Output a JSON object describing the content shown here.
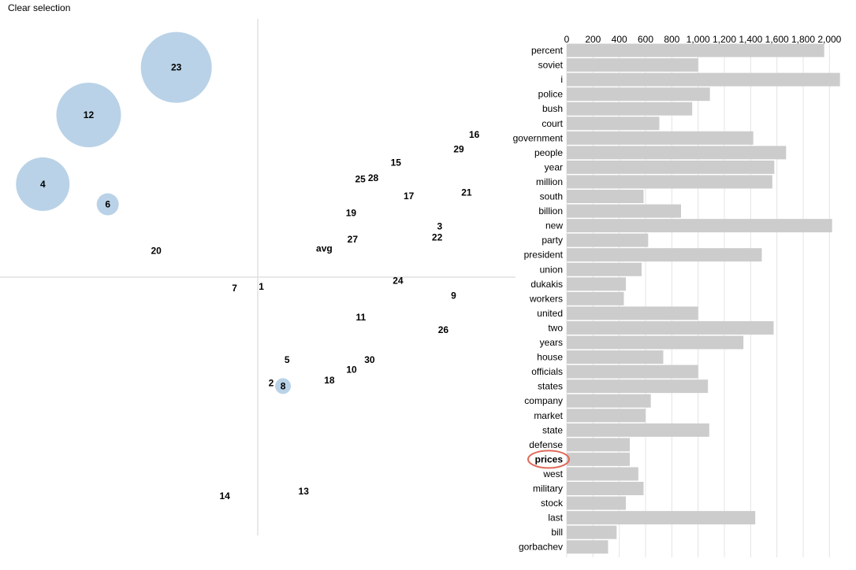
{
  "toolbar": {
    "clear_label": "Clear selection"
  },
  "colors": {
    "topic_circle": "#b5d0e6",
    "bar": "#cccccc",
    "highlight": "#e06a5a"
  },
  "chart_data": [
    {
      "type": "scatter",
      "x": [
        0,
        1
      ],
      "y": [
        0,
        1
      ],
      "points": [
        {
          "label": "23",
          "x": 0.342,
          "y": 0.906,
          "r": 45
        },
        {
          "label": "12",
          "x": 0.172,
          "y": 0.814,
          "r": 41
        },
        {
          "label": "4",
          "x": 0.083,
          "y": 0.68,
          "r": 34
        },
        {
          "label": "6",
          "x": 0.209,
          "y": 0.641,
          "r": 14
        },
        {
          "label": "8",
          "x": 0.549,
          "y": 0.289,
          "r": 10
        },
        {
          "label": "16",
          "x": 0.92,
          "y": 0.776,
          "r": 0
        },
        {
          "label": "29",
          "x": 0.89,
          "y": 0.748,
          "r": 0
        },
        {
          "label": "15",
          "x": 0.768,
          "y": 0.722,
          "r": 0
        },
        {
          "label": "25",
          "x": 0.699,
          "y": 0.69,
          "r": 0
        },
        {
          "label": "28",
          "x": 0.724,
          "y": 0.692,
          "r": 0
        },
        {
          "label": "17",
          "x": 0.793,
          "y": 0.657,
          "r": 0
        },
        {
          "label": "21",
          "x": 0.905,
          "y": 0.664,
          "r": 0
        },
        {
          "label": "19",
          "x": 0.681,
          "y": 0.624,
          "r": 0
        },
        {
          "label": "3",
          "x": 0.853,
          "y": 0.598,
          "r": 0
        },
        {
          "label": "22",
          "x": 0.848,
          "y": 0.577,
          "r": 0
        },
        {
          "label": "27",
          "x": 0.684,
          "y": 0.573,
          "r": 0
        },
        {
          "label": "avg",
          "x": 0.629,
          "y": 0.556,
          "r": 0
        },
        {
          "label": "20",
          "x": 0.303,
          "y": 0.551,
          "r": 0
        },
        {
          "label": "24",
          "x": 0.772,
          "y": 0.493,
          "r": 0
        },
        {
          "label": "1",
          "x": 0.507,
          "y": 0.482,
          "r": 0
        },
        {
          "label": "7",
          "x": 0.455,
          "y": 0.479,
          "r": 0
        },
        {
          "label": "9",
          "x": 0.88,
          "y": 0.464,
          "r": 0
        },
        {
          "label": "11",
          "x": 0.7,
          "y": 0.422,
          "r": 0
        },
        {
          "label": "26",
          "x": 0.86,
          "y": 0.398,
          "r": 0
        },
        {
          "label": "5",
          "x": 0.557,
          "y": 0.34,
          "r": 0
        },
        {
          "label": "30",
          "x": 0.717,
          "y": 0.34,
          "r": 0
        },
        {
          "label": "10",
          "x": 0.682,
          "y": 0.321,
          "r": 0
        },
        {
          "label": "18",
          "x": 0.639,
          "y": 0.3,
          "r": 0
        },
        {
          "label": "2",
          "x": 0.526,
          "y": 0.295,
          "r": 0
        },
        {
          "label": "13",
          "x": 0.589,
          "y": 0.085,
          "r": 0
        },
        {
          "label": "14",
          "x": 0.436,
          "y": 0.076,
          "r": 0
        }
      ],
      "selected": [
        "23",
        "12",
        "4",
        "6",
        "8"
      ]
    },
    {
      "type": "bar",
      "orientation": "horizontal",
      "xlim": [
        0,
        2100
      ],
      "ticks": [
        "0",
        "200",
        "400",
        "600",
        "800",
        "1,000",
        "1,200",
        "1,400",
        "1,600",
        "1,800",
        "2,000"
      ],
      "tick_values": [
        0,
        200,
        400,
        600,
        800,
        1000,
        1200,
        1400,
        1600,
        1800,
        2000
      ],
      "highlighted": "prices",
      "categories": [
        "percent",
        "soviet",
        "i",
        "police",
        "bush",
        "court",
        "government",
        "people",
        "year",
        "million",
        "south",
        "billion",
        "new",
        "party",
        "president",
        "union",
        "dukakis",
        "workers",
        "united",
        "two",
        "years",
        "house",
        "officials",
        "states",
        "company",
        "market",
        "state",
        "defense",
        "prices",
        "west",
        "military",
        "stock",
        "last",
        "bill",
        "gorbachev"
      ],
      "values": [
        1960,
        1000,
        2080,
        1090,
        955,
        705,
        1420,
        1670,
        1580,
        1565,
        585,
        870,
        2020,
        620,
        1485,
        570,
        450,
        435,
        1000,
        1575,
        1345,
        735,
        1000,
        1075,
        640,
        600,
        1085,
        480,
        480,
        545,
        585,
        450,
        1435,
        380,
        315
      ]
    }
  ]
}
